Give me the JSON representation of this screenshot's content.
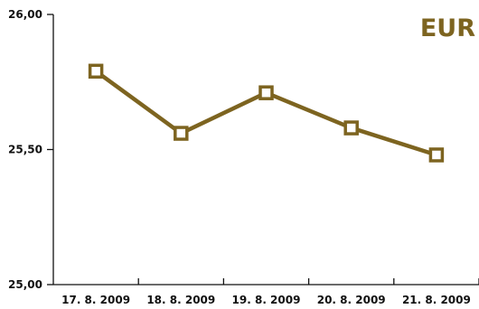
{
  "chart_data": {
    "type": "line",
    "title": "",
    "xlabel": "",
    "ylabel": "",
    "unit_label": "EUR",
    "categories": [
      "17. 8. 2009",
      "18. 8. 2009",
      "19. 8. 2009",
      "20. 8. 2009",
      "21. 8. 2009"
    ],
    "series": [
      {
        "values": [
          25.79,
          25.56,
          25.71,
          25.58,
          25.48
        ]
      }
    ],
    "ylim": [
      25.0,
      26.0
    ],
    "y_ticks": [
      25.0,
      25.5,
      26.0
    ],
    "y_tick_labels": [
      "25,00",
      "25,50",
      "26,00"
    ],
    "grid": false,
    "legend": "none",
    "marker": "open-square",
    "colors": {
      "series": "#7d6420",
      "axis": "#111111",
      "text": "#111111"
    }
  }
}
